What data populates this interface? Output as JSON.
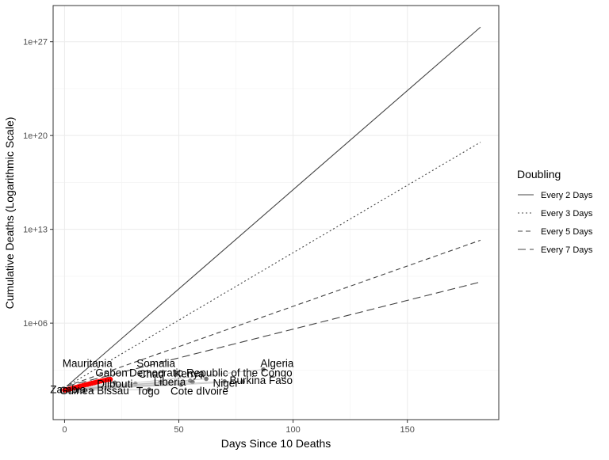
{
  "chart_data": {
    "type": "line",
    "title": "",
    "xlabel": "Days Since 10 Deaths",
    "ylabel": "Cumulative Deaths (Logarithmic Scale)",
    "x_scale": "linear",
    "y_scale": "log10",
    "xlim": [
      -5,
      190
    ],
    "ylim_log10": [
      -1.2,
      29.7
    ],
    "grid": true,
    "x_ticks": [
      {
        "value": 0,
        "label": "0"
      },
      {
        "value": 50,
        "label": "50"
      },
      {
        "value": 100,
        "label": "100"
      },
      {
        "value": 150,
        "label": "150"
      }
    ],
    "y_ticks": [
      {
        "log10": 6,
        "label": "1e+06"
      },
      {
        "log10": 13,
        "label": "1e+13"
      },
      {
        "log10": 20,
        "label": "1e+20"
      },
      {
        "log10": 27,
        "label": "1e+27"
      }
    ],
    "legend": {
      "title": "Doubling",
      "position": "right",
      "entries": [
        {
          "label": "Every 2 Days",
          "dash": "solid"
        },
        {
          "label": "Every 3 Days",
          "dash": "dotted"
        },
        {
          "label": "Every 5 Days",
          "dash": "dashed"
        },
        {
          "label": "Every 7 Days",
          "dash": "longdash"
        }
      ]
    },
    "reference_lines": [
      {
        "label": "Every 2 Days",
        "x": [
          1,
          182
        ],
        "y": [
          20,
          1.23e+28
        ]
      },
      {
        "label": "Every 3 Days",
        "x": [
          1,
          182
        ],
        "y": [
          20,
          3.18e+19
        ]
      },
      {
        "label": "Every 5 Days",
        "x": [
          1,
          182
        ],
        "y": [
          20,
          1540000000000.0
        ]
      },
      {
        "label": "Every 7 Days",
        "x": [
          1,
          182
        ],
        "y": [
          20,
          1180000000.0
        ]
      }
    ],
    "highlight_color": "#ff0000",
    "country_color": "#666666",
    "highlight_series": {
      "x": [
        0,
        1,
        2,
        3,
        4,
        5,
        6,
        7,
        8,
        9,
        10,
        11,
        12,
        13,
        14,
        15,
        16,
        17,
        18,
        19,
        20
      ],
      "y": [
        10,
        11,
        12,
        13,
        15,
        16,
        18,
        20,
        22,
        25,
        27,
        30,
        33,
        36,
        40,
        44,
        48,
        52,
        56,
        60,
        64
      ]
    },
    "countries": [
      {
        "name": "Zambia",
        "x": 2,
        "y": 10
      },
      {
        "name": "Guinea Bissau",
        "x": 12,
        "y": 11
      },
      {
        "name": "Togo",
        "x": 37,
        "y": 11
      },
      {
        "name": "Djibouti",
        "x": 22,
        "y": 36
      },
      {
        "name": "Mauritania",
        "x": 19,
        "y": 70
      },
      {
        "name": "Gabon",
        "x": 19,
        "y": 60
      },
      {
        "name": "Somalia",
        "x": 31,
        "y": 30
      },
      {
        "name": "Chad",
        "x": 42,
        "y": 40
      },
      {
        "name": "Liberia",
        "x": 51,
        "y": 26
      },
      {
        "name": "Kenya",
        "x": 55,
        "y": 50
      },
      {
        "name": "Democratic Republic of the Congo",
        "x": 62,
        "y": 70
      },
      {
        "name": "Cote dIvoire",
        "x": 56,
        "y": 40
      },
      {
        "name": "Niger",
        "x": 70,
        "y": 45
      },
      {
        "name": "Burkina Faso",
        "x": 78,
        "y": 43
      },
      {
        "name": "Algeria",
        "x": 87,
        "y": 350
      }
    ],
    "country_labels": [
      {
        "name": "Mauritania",
        "x": 10,
        "y": 530
      },
      {
        "name": "Somalia",
        "x": 40,
        "y": 530
      },
      {
        "name": "Algeria",
        "x": 93,
        "y": 550
      },
      {
        "name": "Gabon",
        "x": 20.5,
        "y": 102
      },
      {
        "name": "Chad",
        "x": 38,
        "y": 84
      },
      {
        "name": "Democratic Republic of the Congo",
        "x": 64,
        "y": 105
      },
      {
        "name": "Kenya",
        "x": 54.5,
        "y": 93
      },
      {
        "name": "Burkina Faso",
        "x": 86,
        "y": 29
      },
      {
        "name": "Liberia",
        "x": 46,
        "y": 22
      },
      {
        "name": "Niger",
        "x": 70.5,
        "y": 18
      },
      {
        "name": "Djibouti",
        "x": 22,
        "y": 16
      },
      {
        "name": "Zambia",
        "x": 1.5,
        "y": 6.1
      },
      {
        "name": "Guinea Bissau",
        "x": 13,
        "y": 4.8
      },
      {
        "name": "Togo",
        "x": 36.5,
        "y": 4.7
      },
      {
        "name": "Cote dIvoire",
        "x": 59,
        "y": 4.6
      }
    ]
  }
}
